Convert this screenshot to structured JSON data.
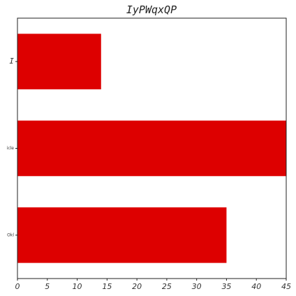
{
  "chart_data": {
    "type": "bar",
    "orientation": "horizontal",
    "title": "IyPWqxQP",
    "xlabel": "",
    "ylabel": "",
    "categories": [
      "I",
      "icle",
      "Okl"
    ],
    "values": [
      14,
      45,
      35
    ],
    "xlim": [
      0,
      45
    ],
    "xticks": [
      "0",
      "5",
      "10",
      "15",
      "20",
      "25",
      "30",
      "35",
      "40",
      "45"
    ],
    "grid": false,
    "bar_color": "#dd0000"
  }
}
